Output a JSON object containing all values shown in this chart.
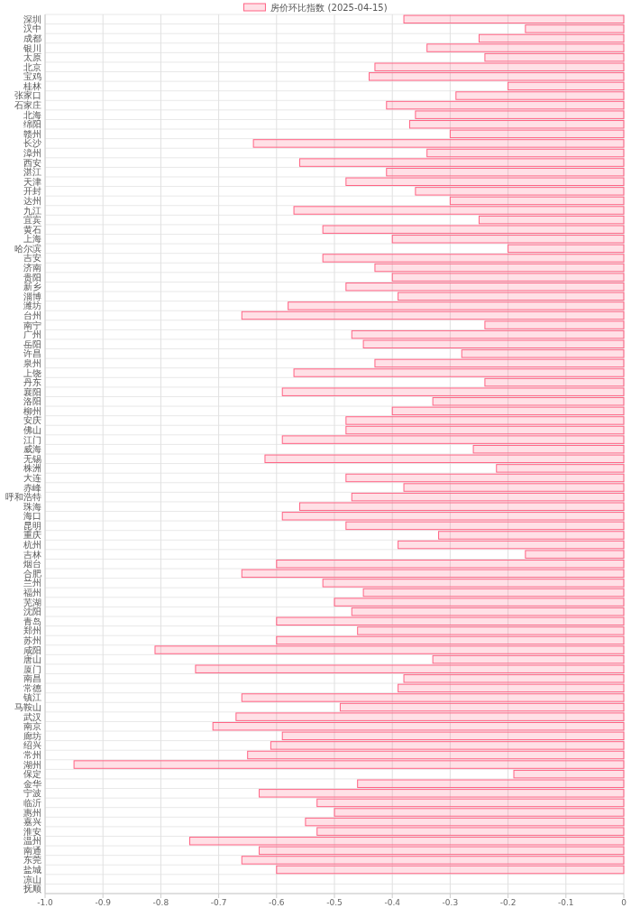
{
  "chart_data": {
    "type": "bar",
    "orientation": "horizontal",
    "legend": "top",
    "grid": true,
    "categories": [
      "深圳",
      "汉中",
      "成都",
      "银川",
      "太原",
      "北京",
      "宝鸡",
      "桂林",
      "张家口",
      "石家庄",
      "北海",
      "绵阳",
      "赣州",
      "长沙",
      "漳州",
      "西安",
      "湛江",
      "天津",
      "开封",
      "达州",
      "九江",
      "宜宾",
      "黄石",
      "上海",
      "哈尔滨",
      "吉安",
      "济南",
      "贵阳",
      "新乡",
      "淄博",
      "潍坊",
      "台州",
      "南宁",
      "广州",
      "岳阳",
      "许昌",
      "泉州",
      "上饶",
      "丹东",
      "襄阳",
      "洛阳",
      "柳州",
      "安庆",
      "佛山",
      "江门",
      "威海",
      "无锡",
      "株洲",
      "大连",
      "赤峰",
      "呼和浩特",
      "珠海",
      "海口",
      "昆明",
      "重庆",
      "杭州",
      "吉林",
      "烟台",
      "合肥",
      "兰州",
      "福州",
      "芜湖",
      "沈阳",
      "青岛",
      "郑州",
      "苏州",
      "咸阳",
      "唐山",
      "厦门",
      "南昌",
      "常德",
      "镇江",
      "马鞍山",
      "武汉",
      "南京",
      "廊坊",
      "绍兴",
      "常州",
      "湖州",
      "保定",
      "金华",
      "宁波",
      "临沂",
      "惠州",
      "嘉兴",
      "淮安",
      "温州",
      "南通",
      "东莞",
      "盐城",
      "凉山",
      "抚顺"
    ],
    "series": [
      {
        "name": "房价环比指数 (2025-04-15)",
        "color": "#ff6384",
        "values": [
          -0.38,
          -0.17,
          -0.25,
          -0.34,
          -0.24,
          -0.43,
          -0.44,
          -0.2,
          -0.29,
          -0.41,
          -0.36,
          -0.37,
          -0.3,
          -0.64,
          -0.34,
          -0.56,
          -0.41,
          -0.48,
          -0.36,
          -0.3,
          -0.57,
          -0.25,
          -0.52,
          -0.4,
          -0.2,
          -0.52,
          -0.43,
          -0.4,
          -0.48,
          -0.39,
          -0.58,
          -0.66,
          -0.24,
          -0.47,
          -0.45,
          -0.28,
          -0.43,
          -0.57,
          -0.24,
          -0.59,
          -0.33,
          -0.4,
          -0.48,
          -0.48,
          -0.59,
          -0.26,
          -0.62,
          -0.22,
          -0.48,
          -0.38,
          -0.47,
          -0.56,
          -0.59,
          -0.48,
          -0.32,
          -0.39,
          -0.17,
          -0.6,
          -0.66,
          -0.52,
          -0.45,
          -0.5,
          -0.47,
          -0.6,
          -0.46,
          -0.6,
          -0.81,
          -0.33,
          -0.74,
          -0.38,
          -0.39,
          -0.66,
          -0.49,
          -0.67,
          -0.71,
          -0.59,
          -0.61,
          -0.65,
          -0.95,
          -0.19,
          -0.46,
          -0.63,
          -0.53,
          -0.5,
          -0.55,
          -0.53,
          -0.75,
          -0.63,
          -0.66,
          -0.6,
          null,
          null
        ]
      }
    ],
    "xlim": [
      -1,
      0
    ],
    "xticks": [
      {
        "value": -1,
        "label": "-1.0"
      },
      -0.9,
      -0.8,
      -0.7,
      -0.6,
      -0.5,
      -0.4,
      -0.3,
      -0.2,
      -0.1,
      0
    ]
  }
}
